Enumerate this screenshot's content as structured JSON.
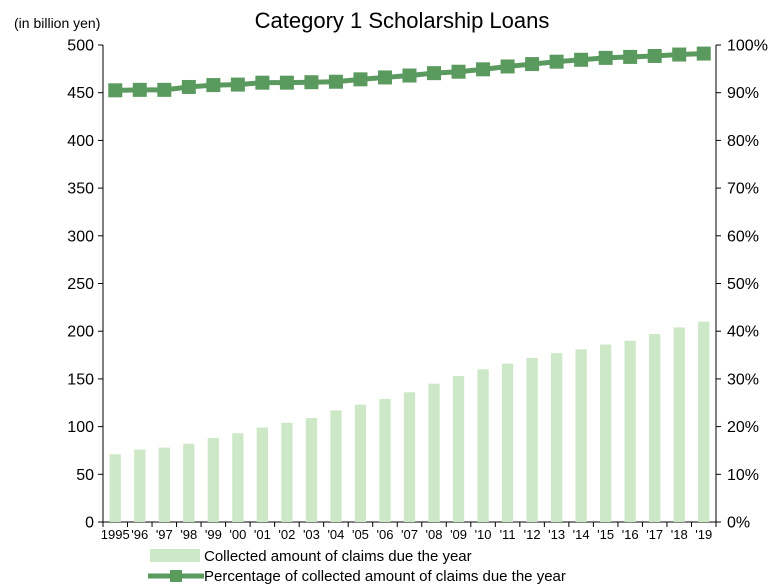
{
  "chart_data": {
    "type": "bar",
    "title": "Category 1 Scholarship Loans",
    "y_unit_label": "(in billion yen)",
    "categories": [
      "1995",
      "'96",
      "'97",
      "'98",
      "'99",
      "'00",
      "'01",
      "'02",
      "'03",
      "'04",
      "'05",
      "'06",
      "'07",
      "'08",
      "'09",
      "'10",
      "'11",
      "'12",
      "'13",
      "'14",
      "'15",
      "'16",
      "'17",
      "'18",
      "'19"
    ],
    "series": [
      {
        "name": "Collected amount of claims due the year",
        "type": "bar",
        "axis": "left",
        "color": "#cde8c7",
        "values": [
          71,
          76,
          78,
          82,
          88,
          93,
          99,
          104,
          109,
          117,
          123,
          129,
          136,
          145,
          153,
          160,
          166,
          172,
          177,
          181,
          186,
          190,
          197,
          204,
          210
        ]
      },
      {
        "name": "Percentage of collected amount of claims due the year",
        "type": "line",
        "axis": "right",
        "color": "#5b9a5f",
        "values": [
          90.5,
          90.6,
          90.6,
          91.2,
          91.6,
          91.7,
          92.1,
          92.1,
          92.2,
          92.3,
          92.8,
          93.2,
          93.6,
          94.1,
          94.4,
          94.9,
          95.5,
          96.0,
          96.5,
          96.9,
          97.3,
          97.5,
          97.7,
          98.0,
          98.2
        ]
      }
    ],
    "y_left": {
      "min": 0,
      "max": 500,
      "ticks": [
        "0",
        "50",
        "100",
        "150",
        "200",
        "250",
        "300",
        "350",
        "400",
        "450",
        "500"
      ]
    },
    "y_right": {
      "min": 0,
      "max": 100,
      "ticks": [
        "0%",
        "10%",
        "20%",
        "30%",
        "40%",
        "50%",
        "60%",
        "70%",
        "80%",
        "90%",
        "100%"
      ]
    },
    "legend_position": "bottom-center",
    "grid": false
  }
}
